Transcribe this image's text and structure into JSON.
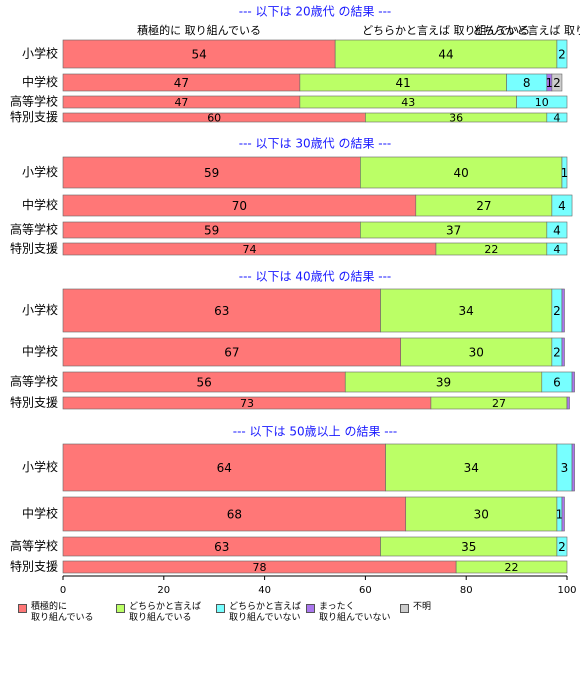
{
  "chart_data": {
    "type": "bar",
    "series": [
      {
        "name": "積極的に\n取り組んでいる",
        "color": "#ff7777"
      },
      {
        "name": "どちらかと言えば\n取り組んでいる",
        "color": "#bbff66"
      },
      {
        "name": "どちらかと言えば\n取り組んでいない",
        "color": "#77ffff"
      },
      {
        "name": "まったく\n取り組んでいない",
        "color": "#aa77ee"
      },
      {
        "name": "不明",
        "color": "#cccccc"
      }
    ],
    "xlim": [
      0,
      100
    ],
    "xticks": [
      0,
      20,
      40,
      60,
      80,
      100
    ],
    "panels": [
      {
        "title": "--- 以下は 20歳代 の結果 ---",
        "categories": [
          "小学校",
          "中学校",
          "高等学校",
          "特別支援"
        ],
        "values": [
          [
            54,
            44,
            2,
            0,
            0
          ],
          [
            47,
            41,
            8,
            1,
            2
          ],
          [
            47,
            43,
            10,
            0,
            0
          ],
          [
            60,
            36,
            4,
            0,
            0
          ]
        ]
      },
      {
        "title": "--- 以下は 30歳代 の結果 ---",
        "categories": [
          "小学校",
          "中学校",
          "高等学校",
          "特別支援"
        ],
        "values": [
          [
            59,
            40,
            1,
            0,
            0
          ],
          [
            70,
            27,
            4,
            0,
            0
          ],
          [
            59,
            37,
            4,
            0,
            0
          ],
          [
            74,
            22,
            4,
            0,
            0
          ]
        ]
      },
      {
        "title": "--- 以下は 40歳代 の結果 ---",
        "categories": [
          "小学校",
          "中学校",
          "高等学校",
          "特別支援"
        ],
        "values": [
          [
            63,
            34,
            2,
            0.5,
            0
          ],
          [
            67,
            30,
            2,
            0.5,
            0
          ],
          [
            56,
            39,
            6,
            0.5,
            0
          ],
          [
            73,
            27,
            0,
            0.5,
            0
          ]
        ]
      },
      {
        "title": "--- 以下は 50歳以上 の結果 ---",
        "categories": [
          "小学校",
          "中学校",
          "高等学校",
          "特別支援"
        ],
        "values": [
          [
            64,
            34,
            3,
            0.5,
            0
          ],
          [
            68,
            30,
            1,
            0.5,
            0
          ],
          [
            63,
            35,
            2,
            0,
            0
          ],
          [
            78,
            22,
            0,
            0,
            0
          ]
        ]
      }
    ]
  }
}
